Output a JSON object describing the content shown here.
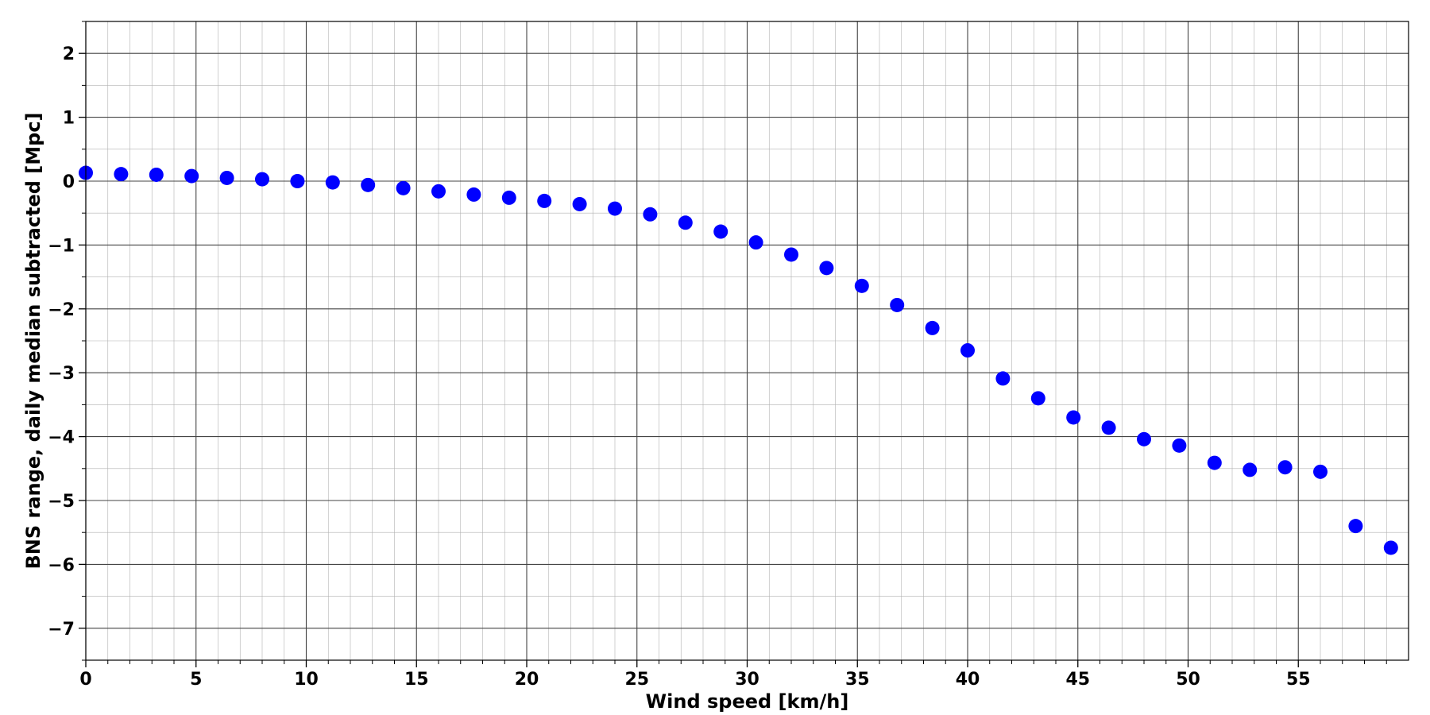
{
  "chart_data": {
    "type": "scatter",
    "title": "",
    "xlabel": "Wind speed [km/h]",
    "ylabel": "BNS range, daily median subtracted [Mpc]",
    "xlim": [
      0,
      60
    ],
    "ylim": [
      -7.5,
      2.5
    ],
    "x_ticks": [
      0,
      5,
      10,
      15,
      20,
      25,
      30,
      35,
      40,
      45,
      50,
      55
    ],
    "x_tick_labels": [
      "0",
      "5",
      "10",
      "15",
      "20",
      "25",
      "30",
      "35",
      "40",
      "45",
      "50",
      "55"
    ],
    "y_ticks": [
      -7,
      -6,
      -5,
      -4,
      -3,
      -2,
      -1,
      0,
      1,
      2
    ],
    "y_tick_labels": [
      "−7",
      "−6",
      "−5",
      "−4",
      "−3",
      "−2",
      "−1",
      "0",
      "1",
      "2"
    ],
    "grid": true,
    "minor_grid": true,
    "marker_color": "#0000ff",
    "series": [
      {
        "x": [
          0,
          1.6,
          3.2,
          4.8,
          6.4,
          8.0,
          9.6,
          11.2,
          12.8,
          14.4,
          16.0,
          17.6,
          19.2,
          20.8,
          22.4,
          24.0,
          25.6,
          27.2,
          28.8,
          30.4,
          32.0,
          33.6,
          35.2,
          36.8,
          38.4,
          40.0,
          41.6,
          43.2,
          44.8,
          46.4,
          48.0,
          49.6,
          51.2,
          52.8,
          54.4,
          56.0,
          57.6,
          59.2
        ],
        "y": [
          0.13,
          0.11,
          0.1,
          0.08,
          0.05,
          0.03,
          0.0,
          -0.02,
          -0.06,
          -0.11,
          -0.16,
          -0.21,
          -0.26,
          -0.31,
          -0.36,
          -0.43,
          -0.52,
          -0.65,
          -0.79,
          -0.96,
          -1.15,
          -1.36,
          -1.64,
          -1.94,
          -2.3,
          -2.65,
          -3.09,
          -3.4,
          -3.7,
          -3.86,
          -4.04,
          -4.14,
          -4.41,
          -4.52,
          -4.48,
          -4.55,
          -5.4,
          -5.74
        ]
      }
    ]
  }
}
